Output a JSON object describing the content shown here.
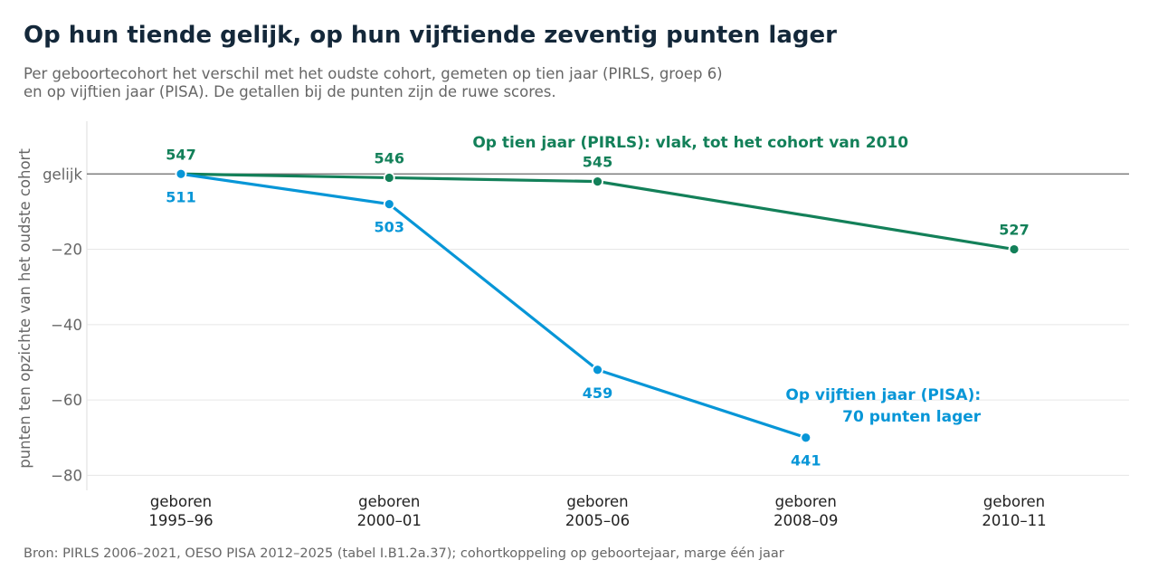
{
  "chart_data": {
    "type": "line",
    "title": "Op hun tiende gelijk, op hun vijftiende zeventig punten lager",
    "subtitle": [
      "Per geboortecohort het verschil met het oudste cohort, gemeten op tien jaar (PIRLS, groep 6)",
      "en op vijftien jaar (PISA). De getallen bij de punten zijn de ruwe scores."
    ],
    "ylabel": "punten ten opzichte van het oudste cohort",
    "ylim": [
      -84,
      14
    ],
    "yticks": [
      {
        "value": 0,
        "label": "gelijk"
      },
      {
        "value": -20,
        "label": "−20"
      },
      {
        "value": -40,
        "label": "−40"
      },
      {
        "value": -60,
        "label": "−60"
      },
      {
        "value": -80,
        "label": "−80"
      }
    ],
    "categories": [
      [
        "geboren",
        "1995–96"
      ],
      [
        "geboren",
        "2000–01"
      ],
      [
        "geboren",
        "2005–06"
      ],
      [
        "geboren",
        "2008–09"
      ],
      [
        "geboren",
        "2010–11"
      ]
    ],
    "grid": true,
    "series": [
      {
        "key": "pirls",
        "color": "#138059",
        "values": [
          0,
          -1,
          -2,
          null,
          -20
        ],
        "labels": [
          "547",
          "546",
          "545",
          null,
          "527"
        ],
        "label_side": "above"
      },
      {
        "key": "pisa",
        "color": "#0796d7",
        "values": [
          0,
          -8,
          -52,
          -70,
          null
        ],
        "labels": [
          "511",
          "503",
          "459",
          "441",
          null
        ],
        "label_side": "below"
      }
    ],
    "annotations": [
      {
        "series": "pirls",
        "lines": [
          "Op tien jaar (PIRLS): vlak, tot het cohort van 2010"
        ],
        "x": 1.4,
        "y": 7,
        "anchor": "start"
      },
      {
        "series": "pisa",
        "lines": [
          "Op vijftien jaar (PISA):",
          "70 punten lager"
        ],
        "x": 3.84,
        "y": -60,
        "anchor": "end"
      }
    ],
    "source": "Bron: PIRLS 2006–2021, OESO PISA 2012–2025 (tabel I.B1.2a.37); cohortkoppeling op geboortejaar, marge één jaar"
  }
}
